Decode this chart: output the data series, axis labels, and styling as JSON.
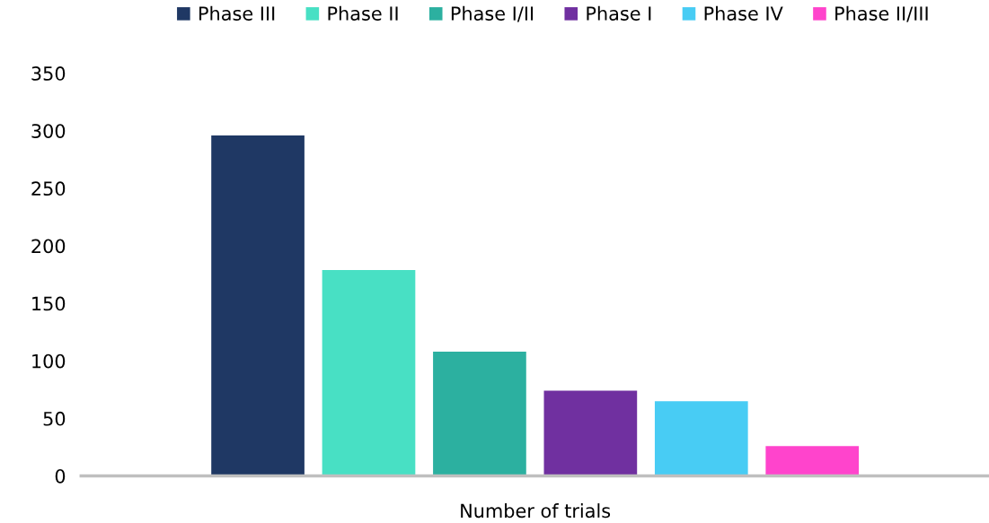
{
  "chart_data": {
    "type": "bar",
    "categories": [
      "Number of trials"
    ],
    "series": [
      {
        "name": "Phase III",
        "color": "#1f3864",
        "values": [
          296
        ]
      },
      {
        "name": "Phase II",
        "color": "#48e0c4",
        "values": [
          179
        ]
      },
      {
        "name": "Phase I/II",
        "color": "#2cb0a0",
        "values": [
          108
        ]
      },
      {
        "name": "Phase I",
        "color": "#7030a0",
        "values": [
          74
        ]
      },
      {
        "name": "Phase IV",
        "color": "#48ccf4",
        "values": [
          65
        ]
      },
      {
        "name": "Phase II/III",
        "color": "#ff44cc",
        "values": [
          26
        ]
      }
    ],
    "ylim": [
      0,
      350
    ],
    "yticks": [
      0,
      50,
      100,
      150,
      200,
      250,
      300,
      350
    ],
    "grid": false,
    "legend": "top"
  }
}
